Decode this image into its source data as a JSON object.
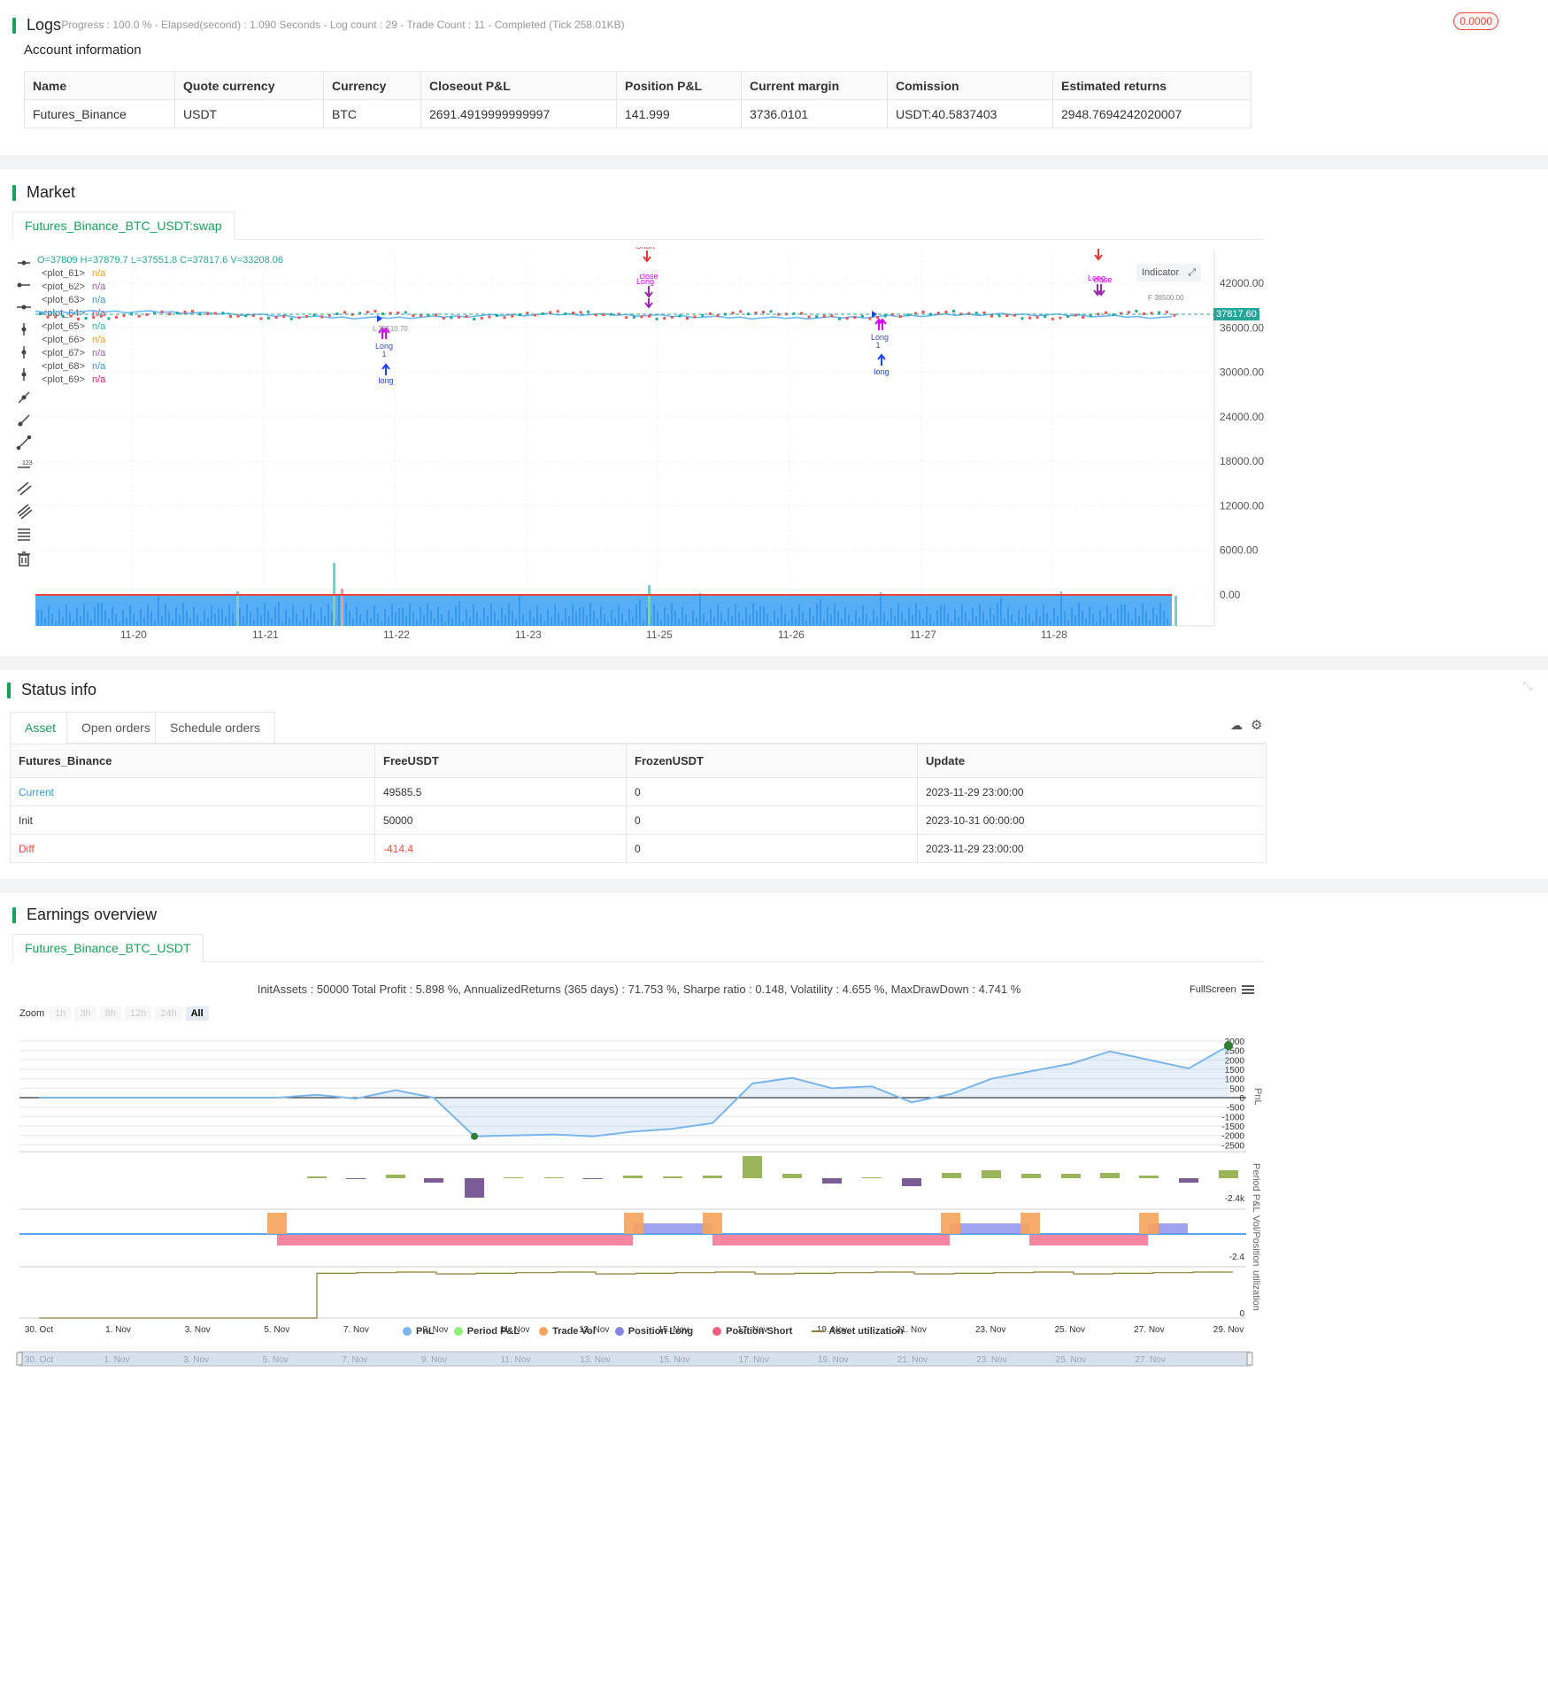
{
  "logs": {
    "title": "Logs",
    "status": "- Progress : 100.0 % - Elapsed(second) : 1.090  Seconds - Log count : 29 - Trade Count : 11 - Completed (Tick 258.01KB)",
    "badge": "0.0000"
  },
  "account": {
    "title": "Account information",
    "columns": [
      "Name",
      "Quote currency",
      "Currency",
      "Closeout P&L",
      "Position P&L",
      "Current margin",
      "Comission",
      "Estimated returns"
    ],
    "row": [
      "Futures_Binance",
      "USDT",
      "BTC",
      "2691.4919999999997",
      "141.999",
      "3736.0101",
      "USDT:40.5837403",
      "2948.7694242020007"
    ]
  },
  "market": {
    "title": "Market",
    "tab": "Futures_Binance_BTC_USDT:swap",
    "ohlc": "O=37809 H=37879.7 L=37551.8 C=37817.6 V=33208.06",
    "plots": [
      {
        "name": "<plot_61>",
        "value": "n/a",
        "color": "#f39c12"
      },
      {
        "name": "<plot_62>",
        "value": "n/a",
        "color": "#9b59b6"
      },
      {
        "name": "<plot_63>",
        "value": "n/a",
        "color": "#3498db"
      },
      {
        "name": "<plot_64>",
        "value": "n/a",
        "color": "#e91e63"
      },
      {
        "name": "<plot_65>",
        "value": "n/a",
        "color": "#1abc9c"
      },
      {
        "name": "<plot_66>",
        "value": "n/a",
        "color": "#f39c12"
      },
      {
        "name": "<plot_67>",
        "value": "n/a",
        "color": "#9b59b6"
      },
      {
        "name": "<plot_68>",
        "value": "n/a",
        "color": "#3498db"
      },
      {
        "name": "<plot_69>",
        "value": "n/a",
        "color": "#e91e63"
      }
    ],
    "indicator_button": "Indicator",
    "price_label": "37817.60",
    "y_ticks": [
      "42000.00",
      "36000.00",
      "30000.00",
      "24000.00",
      "18000.00",
      "12000.00",
      "6000.00",
      "0.00"
    ],
    "x_ticks": [
      "11-20",
      "11-21",
      "11-22",
      "11-23",
      "11-25",
      "11-26",
      "11-27",
      "11-28"
    ],
    "annotations": {
      "short1": "Short",
      "close1": "close",
      "long1": "Long",
      "short2": "Short",
      "long2": "Long",
      "close2": "close",
      "lc1": "Long\nclose",
      "one1": "1",
      "long_arrow1": "long",
      "lc2": "Long\nclose",
      "one2": "1",
      "long_arrow2": "long",
      "level1": "L 35510.70",
      "level2": "F 38500.00"
    }
  },
  "status": {
    "title": "Status info",
    "tabs": [
      "Asset",
      "Open orders",
      "Schedule orders"
    ],
    "columns": [
      "Futures_Binance",
      "FreeUSDT",
      "FrozenUSDT",
      "Update"
    ],
    "rows": [
      [
        "Current",
        "49585.5",
        "0",
        "2023-11-29 23:00:00"
      ],
      [
        "Init",
        "50000",
        "0",
        "2023-10-31 00:00:00"
      ],
      [
        "Diff",
        "-414.4",
        "0",
        "2023-11-29 23:00:00"
      ]
    ]
  },
  "earnings": {
    "title": "Earnings overview",
    "tab": "Futures_Binance_BTC_USDT",
    "summary": "InitAssets : 50000 Total Profit : 5.898 %, AnnualizedReturns (365 days) : 71.753 %, Sharpe ratio : 0.148, Volatility : 4.655 %, MaxDrawDown : 4.741 %",
    "fullscreen": "FullScreen",
    "zoom_label": "Zoom",
    "zoom_buttons": [
      "1h",
      "3h",
      "8h",
      "12h",
      "24h",
      "All"
    ],
    "pnl_ticks": [
      "3000",
      "2500",
      "2000",
      "1500",
      "1000",
      "500",
      "0",
      "-500",
      "-1000",
      "-1500",
      "-2000",
      "-2500"
    ],
    "pnl_axis": "PnL",
    "period_axis": "Period P&L",
    "period_tick": "-2.4k",
    "vol_axis": "Vol/Position",
    "vol_tick": "-2.4",
    "util_axis": "utilization",
    "util_tick": "0",
    "x_ticks": [
      "30. Oct",
      "1. Nov",
      "3. Nov",
      "5. Nov",
      "7. Nov",
      "9. Nov",
      "11. Nov",
      "13. Nov",
      "15. Nov",
      "17. Nov",
      "19. Nov",
      "21. Nov",
      "23. Nov",
      "25. Nov",
      "27. Nov",
      "29. Nov"
    ],
    "nav_ticks": [
      "30. Oct",
      "1. Nov",
      "3. Nov",
      "5. Nov",
      "7. Nov",
      "9. Nov",
      "11. Nov",
      "13. Nov",
      "15. Nov",
      "17. Nov",
      "19. Nov",
      "21. Nov",
      "23. Nov",
      "25. Nov",
      "27. Nov"
    ],
    "legend": [
      {
        "label": "PnL",
        "color": "#7cb5ec",
        "shape": "circle"
      },
      {
        "label": "Period P&L",
        "color": "#90ed7d",
        "shape": "circle"
      },
      {
        "label": "Trade Vol",
        "color": "#f7a35c",
        "shape": "circle"
      },
      {
        "label": "Position Long",
        "color": "#8085e9",
        "shape": "circle"
      },
      {
        "label": "Position Short",
        "color": "#f15c80",
        "shape": "circle"
      },
      {
        "label": "Asset utilization",
        "color": "#8d7d3a",
        "shape": "line"
      }
    ]
  },
  "chart_data": {
    "type": "line",
    "title": "",
    "xlabel": "",
    "ylabel": "PnL",
    "x": [
      "30. Oct",
      "1. Nov",
      "3. Nov",
      "5. Nov",
      "7. Nov",
      "8. Nov",
      "9. Nov",
      "10. Nov",
      "11. Nov",
      "13. Nov",
      "14. Nov",
      "15. Nov",
      "16. Nov",
      "17. Nov",
      "18. Nov",
      "19. Nov",
      "20. Nov",
      "21. Nov",
      "22. Nov",
      "23. Nov",
      "24. Nov",
      "25. Nov",
      "26. Nov",
      "27. Nov",
      "28. Nov",
      "29. Nov"
    ],
    "series": [
      {
        "values": [
          0,
          0,
          0,
          0,
          150,
          -50,
          400,
          0,
          -2050,
          -1950,
          -2050,
          -1800,
          -1650,
          -1350,
          750,
          1050,
          500,
          600,
          -250,
          200,
          1000,
          1400,
          1800,
          2450,
          1550,
          2750
        ]
      }
    ],
    "ylim": [
      -2500,
      3000
    ]
  }
}
